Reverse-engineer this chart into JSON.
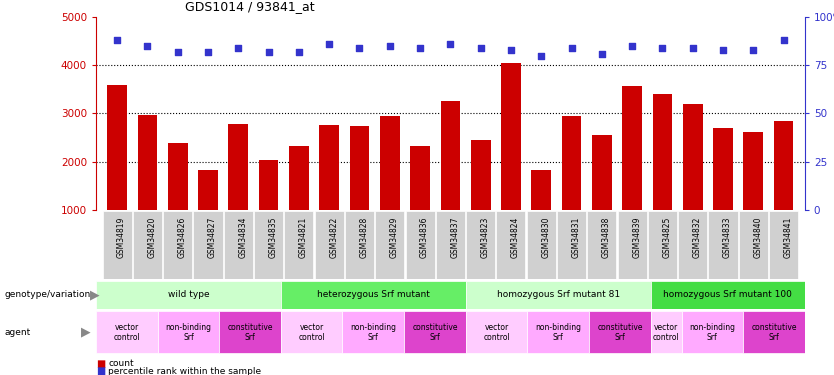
{
  "title": "GDS1014 / 93841_at",
  "samples": [
    "GSM34819",
    "GSM34820",
    "GSM34826",
    "GSM34827",
    "GSM34834",
    "GSM34835",
    "GSM34821",
    "GSM34822",
    "GSM34828",
    "GSM34829",
    "GSM34836",
    "GSM34837",
    "GSM34823",
    "GSM34824",
    "GSM34830",
    "GSM34831",
    "GSM34838",
    "GSM34839",
    "GSM34825",
    "GSM34832",
    "GSM34833",
    "GSM34840",
    "GSM34841"
  ],
  "counts": [
    3580,
    2960,
    2380,
    1820,
    2780,
    2030,
    2330,
    2760,
    2730,
    2940,
    2330,
    3260,
    2460,
    4050,
    1830,
    2940,
    2560,
    3570,
    3410,
    3200,
    2700,
    2620,
    2850
  ],
  "percentiles": [
    88,
    85,
    82,
    82,
    84,
    82,
    82,
    86,
    84,
    85,
    84,
    86,
    84,
    83,
    80,
    84,
    81,
    85,
    84,
    84,
    83,
    83,
    88
  ],
  "bar_color": "#cc0000",
  "dot_color": "#3333cc",
  "ylim_left": [
    1000,
    5000
  ],
  "ylim_right": [
    0,
    100
  ],
  "yticks_left": [
    1000,
    2000,
    3000,
    4000,
    5000
  ],
  "yticks_right": [
    0,
    25,
    50,
    75,
    100
  ],
  "grid_lines": [
    2000,
    3000,
    4000
  ],
  "genotype_groups": [
    {
      "label": "wild type",
      "start": 0,
      "end": 6,
      "color": "#ccffcc"
    },
    {
      "label": "heterozygous Srf mutant",
      "start": 6,
      "end": 12,
      "color": "#66ee66"
    },
    {
      "label": "homozygous Srf mutant 81",
      "start": 12,
      "end": 18,
      "color": "#ccffcc"
    },
    {
      "label": "homozygous Srf mutant 100",
      "start": 18,
      "end": 23,
      "color": "#44dd44"
    }
  ],
  "agent_groups": [
    {
      "label": "vector\ncontrol",
      "start": 0,
      "end": 2,
      "color": "#ffaaff"
    },
    {
      "label": "non-binding\nSrf",
      "start": 2,
      "end": 4,
      "color": "#ffaaff"
    },
    {
      "label": "constitutive\nSrf",
      "start": 4,
      "end": 6,
      "color": "#ee44dd"
    },
    {
      "label": "vector\ncontrol",
      "start": 6,
      "end": 8,
      "color": "#ffaaff"
    },
    {
      "label": "non-binding\nSrf",
      "start": 8,
      "end": 10,
      "color": "#ffaaff"
    },
    {
      "label": "constitutive\nSrf",
      "start": 10,
      "end": 12,
      "color": "#ee44dd"
    },
    {
      "label": "vector\ncontrol",
      "start": 12,
      "end": 14,
      "color": "#ffaaff"
    },
    {
      "label": "non-binding\nSrf",
      "start": 14,
      "end": 16,
      "color": "#ffaaff"
    },
    {
      "label": "constitutive\nSrf",
      "start": 16,
      "end": 18,
      "color": "#ee44dd"
    },
    {
      "label": "vector\ncontrol",
      "start": 18,
      "end": 19,
      "color": "#ffaaff"
    },
    {
      "label": "non-binding\nSrf",
      "start": 19,
      "end": 21,
      "color": "#ffaaff"
    },
    {
      "label": "constitutive\nSrf",
      "start": 21,
      "end": 23,
      "color": "#ee44dd"
    }
  ],
  "xtick_bg": "#cccccc",
  "legend_count_color": "#cc0000",
  "legend_dot_color": "#3333cc"
}
